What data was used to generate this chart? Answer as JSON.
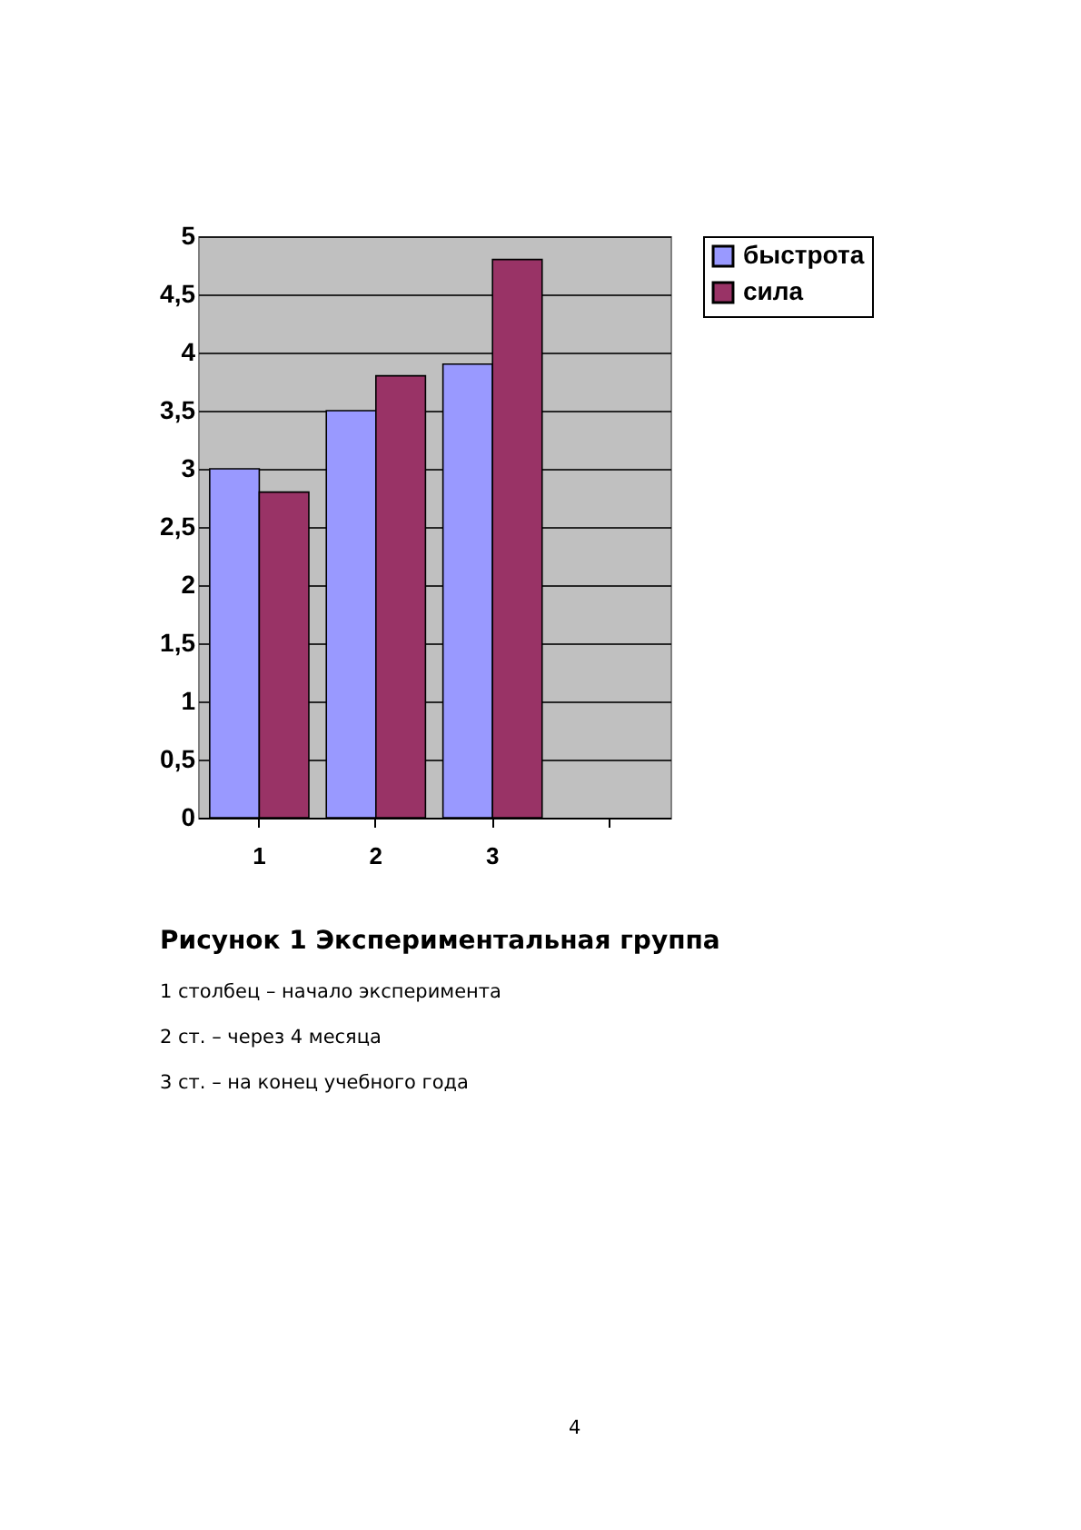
{
  "chart_data": {
    "type": "bar",
    "title": "Рисунок 1 Экспериментальная группа",
    "categories": [
      "1",
      "2",
      "3",
      null
    ],
    "series": [
      {
        "name": "быстрота",
        "color": "#9999ff",
        "values": [
          3,
          3.5,
          3.9,
          null
        ]
      },
      {
        "name": "сила",
        "color": "#993366",
        "values": [
          2.8,
          3.8,
          4.8,
          null
        ]
      }
    ],
    "ylim": [
      0,
      5
    ],
    "yticks": [
      0,
      {
        "value": 0.5,
        "label": "0,5"
      },
      1,
      {
        "value": 1.5,
        "label": "1,5"
      },
      2,
      {
        "value": 2.5,
        "label": "2,5"
      },
      3,
      {
        "value": 3.5,
        "label": "3,5"
      },
      4,
      {
        "value": 4.5,
        "label": "4,5"
      },
      5
    ],
    "grid": "y",
    "legend": "right",
    "annotations": [
      "1 столбец – начало эксперимента",
      "2 ст. – через 4 месяца",
      "3 ст. – на конец учебного года",
      "4"
    ]
  }
}
